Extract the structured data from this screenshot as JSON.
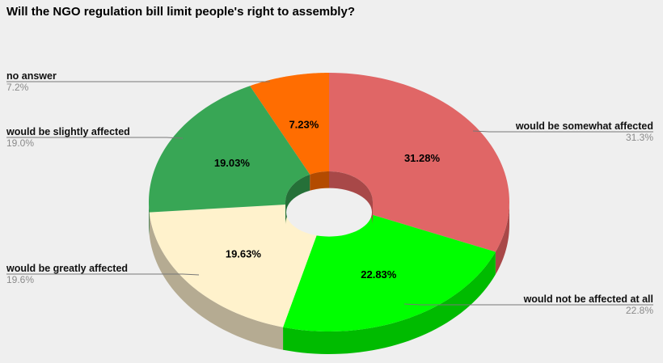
{
  "chart_data": {
    "type": "pie",
    "title": "Will the NGO regulation bill limit people's right to assembly?",
    "slices": [
      {
        "label": "would be somewhat affected",
        "value": 31.28,
        "value_label": "31.28%",
        "legend_pct": "31.3%",
        "color": "#e06666",
        "dark": "#a84848"
      },
      {
        "label": "would not be affected at all",
        "value": 22.83,
        "value_label": "22.83%",
        "legend_pct": "22.8%",
        "color": "#00ff00",
        "dark": "#00bb00"
      },
      {
        "label": "would be greatly affected",
        "value": 19.63,
        "value_label": "19.63%",
        "legend_pct": "19.6%",
        "color": "#fff2cc",
        "dark": "#b5ab92"
      },
      {
        "label": "would be slightly affected",
        "value": 19.03,
        "value_label": "19.03%",
        "legend_pct": "19.0%",
        "color": "#38a655",
        "dark": "#257038"
      },
      {
        "label": "no answer",
        "value": 7.23,
        "value_label": "7.23%",
        "legend_pct": "7.2%",
        "color": "#ff6d01",
        "dark": "#b34b00"
      }
    ]
  }
}
